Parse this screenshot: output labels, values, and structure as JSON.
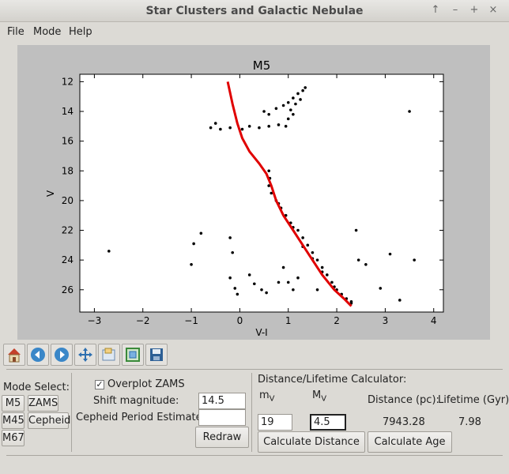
{
  "window": {
    "title": "Star Clusters and Galactic Nebulae",
    "buttons": [
      "↑",
      "–",
      "+",
      "×"
    ]
  },
  "menu": [
    "File",
    "Mode",
    "Help"
  ],
  "toolbar_icons": [
    "home-icon",
    "back-icon",
    "forward-icon",
    "pan-icon",
    "subplots-icon",
    "zoom-icon",
    "save-icon"
  ],
  "mode": {
    "label": "Mode Select:",
    "clusters": [
      "M5",
      "M45",
      "M67"
    ],
    "buttons": [
      "ZAMS",
      "Cepheid"
    ]
  },
  "options": {
    "overplot_label": "Overplot ZAMS",
    "overplot_checked": true,
    "shift_label": "Shift magnitude:",
    "shift_value": "14.5",
    "cepheid_label": "Cepheid Period Estimate",
    "cepheid_value": "",
    "redraw_label": "Redraw"
  },
  "calculator": {
    "title": "Distance/Lifetime Calculator:",
    "m_label": "m",
    "m_sub": "V",
    "M_label": "M",
    "M_sub": "V",
    "distance_label": "Distance (pc):",
    "lifetime_label": "Lifetime (Gyr):",
    "m_value": "19",
    "M_value": "4.5",
    "distance_value": "7943.28",
    "lifetime_value": "7.98",
    "calc_distance_label": "Calculate Distance",
    "calc_age_label": "Calculate Age"
  },
  "chart_data": {
    "type": "scatter",
    "title": "M5",
    "xlabel": "V-I",
    "ylabel": "V",
    "xlim": [
      -3.3,
      4.2
    ],
    "ylim": [
      27.5,
      11.5
    ],
    "y_inverted": true,
    "xticks": [
      -3,
      -2,
      -1,
      0,
      1,
      2,
      3,
      4
    ],
    "yticks": [
      12,
      14,
      16,
      18,
      20,
      22,
      24,
      26
    ],
    "grid": false,
    "series": [
      {
        "kind": "points",
        "color": "#000000",
        "points": [
          [
            -0.5,
            14.8
          ],
          [
            -0.6,
            15.1
          ],
          [
            -0.4,
            15.2
          ],
          [
            -0.2,
            15.1
          ],
          [
            0.05,
            15.2
          ],
          [
            0.2,
            15.0
          ],
          [
            0.4,
            15.1
          ],
          [
            0.6,
            15.0
          ],
          [
            0.8,
            14.9
          ],
          [
            0.95,
            15.0
          ],
          [
            0.5,
            14.0
          ],
          [
            0.6,
            14.2
          ],
          [
            0.75,
            13.8
          ],
          [
            0.9,
            13.6
          ],
          [
            1.0,
            13.4
          ],
          [
            1.1,
            13.1
          ],
          [
            1.2,
            12.8
          ],
          [
            1.3,
            12.6
          ],
          [
            1.35,
            12.4
          ],
          [
            1.05,
            13.9
          ],
          [
            1.15,
            13.5
          ],
          [
            1.25,
            13.2
          ],
          [
            1.0,
            14.5
          ],
          [
            1.1,
            14.2
          ],
          [
            0.6,
            18.0
          ],
          [
            0.62,
            18.5
          ],
          [
            0.6,
            19.0
          ],
          [
            0.65,
            19.5
          ],
          [
            0.75,
            20.0
          ],
          [
            0.85,
            20.5
          ],
          [
            0.95,
            21.0
          ],
          [
            1.05,
            21.5
          ],
          [
            1.2,
            22.0
          ],
          [
            1.3,
            22.5
          ],
          [
            1.4,
            23.0
          ],
          [
            1.5,
            23.5
          ],
          [
            1.6,
            24.0
          ],
          [
            1.7,
            24.5
          ],
          [
            1.8,
            25.0
          ],
          [
            1.9,
            25.5
          ],
          [
            2.0,
            26.0
          ],
          [
            2.1,
            26.3
          ],
          [
            2.2,
            26.6
          ],
          [
            2.3,
            26.8
          ],
          [
            1.5,
            23.9
          ],
          [
            1.7,
            24.8
          ],
          [
            1.95,
            25.8
          ],
          [
            0.8,
            20.2
          ],
          [
            1.1,
            21.8
          ],
          [
            1.3,
            23.1
          ],
          [
            -2.7,
            23.4
          ],
          [
            -1.0,
            24.3
          ],
          [
            -0.95,
            22.9
          ],
          [
            -0.8,
            22.2
          ],
          [
            -0.2,
            22.5
          ],
          [
            -0.15,
            23.5
          ],
          [
            -0.2,
            25.2
          ],
          [
            -0.1,
            25.9
          ],
          [
            0.2,
            25.0
          ],
          [
            0.3,
            25.6
          ],
          [
            0.45,
            26.0
          ],
          [
            0.55,
            26.2
          ],
          [
            0.8,
            25.5
          ],
          [
            0.9,
            24.5
          ],
          [
            1.0,
            25.5
          ],
          [
            1.1,
            26.0
          ],
          [
            1.2,
            25.2
          ],
          [
            2.4,
            22.0
          ],
          [
            2.45,
            24.0
          ],
          [
            2.6,
            24.3
          ],
          [
            2.9,
            25.9
          ],
          [
            3.3,
            26.7
          ],
          [
            3.5,
            14.0
          ],
          [
            3.1,
            23.6
          ],
          [
            3.6,
            24.0
          ],
          [
            2.3,
            26.9
          ],
          [
            1.6,
            26.0
          ],
          [
            -0.05,
            26.3
          ]
        ]
      },
      {
        "kind": "line",
        "color": "#e00000",
        "name": "ZAMS",
        "points": [
          [
            -0.25,
            12.0
          ],
          [
            -0.15,
            13.5
          ],
          [
            -0.05,
            14.8
          ],
          [
            0.05,
            15.8
          ],
          [
            0.2,
            16.7
          ],
          [
            0.4,
            17.5
          ],
          [
            0.55,
            18.2
          ],
          [
            0.65,
            19.0
          ],
          [
            0.75,
            20.0
          ],
          [
            0.9,
            21.0
          ],
          [
            1.1,
            22.0
          ],
          [
            1.3,
            23.0
          ],
          [
            1.5,
            24.0
          ],
          [
            1.7,
            25.0
          ],
          [
            1.95,
            26.0
          ],
          [
            2.15,
            26.6
          ],
          [
            2.3,
            27.1
          ]
        ]
      }
    ]
  }
}
